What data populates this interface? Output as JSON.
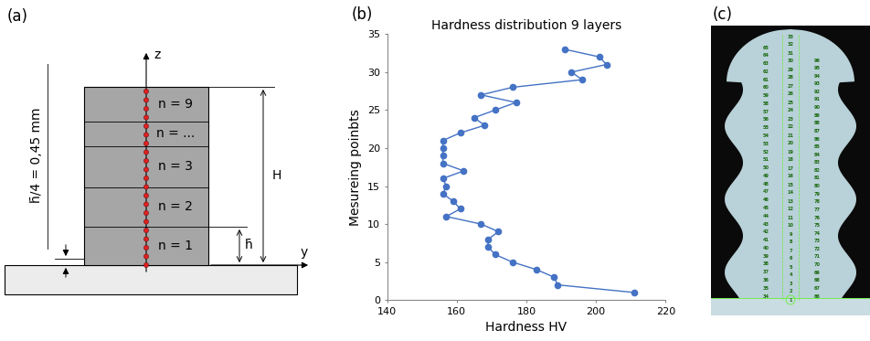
{
  "panel_labels": [
    "(a)",
    "(b)",
    "(c)"
  ],
  "diagram": {
    "axis_labels": {
      "vertical": "z",
      "horizontal": "y"
    },
    "layers": [
      "n = 1",
      "n = 2",
      "n = 3",
      "n = ...",
      "n = 9"
    ],
    "dimensions": {
      "total_height": "H",
      "layer_height": "h̄",
      "offset": "h̄/4 = 0,45 mm"
    }
  },
  "chart_data": {
    "type": "line",
    "title": "Hardness distribution 9 layers",
    "x_label": "Hardness HV",
    "y_label": "Mesureing poinbts",
    "x": [
      211,
      189,
      188,
      183,
      176,
      171,
      169,
      169,
      172,
      167,
      157,
      161,
      159,
      156,
      157,
      156,
      162,
      156,
      156,
      156,
      156,
      161,
      168,
      165,
      171,
      177,
      167,
      176,
      196,
      193,
      203,
      201,
      191
    ],
    "y": [
      1,
      2,
      3,
      4,
      5,
      6,
      7,
      8,
      9,
      10,
      11,
      12,
      13,
      14,
      15,
      16,
      17,
      18,
      19,
      20,
      21,
      22,
      23,
      24,
      25,
      26,
      27,
      28,
      29,
      30,
      31,
      32,
      33
    ],
    "color": "#4472c4",
    "marker": "circle",
    "line_style": "solid",
    "xlim": [
      140,
      220
    ],
    "xticks": [
      140,
      160,
      180,
      200,
      220
    ],
    "ylim": [
      0,
      35
    ],
    "yticks": [
      0,
      5,
      10,
      15,
      20,
      25,
      30,
      35
    ],
    "grid": false
  },
  "photo": {
    "point_columns": {
      "left": [
        34,
        35,
        36,
        37,
        38,
        39,
        40,
        41,
        42,
        43,
        44,
        45,
        46,
        47,
        48,
        49,
        50,
        51,
        52,
        53,
        54,
        55,
        56,
        57,
        58,
        59,
        60,
        61,
        62,
        63,
        64,
        65
      ],
      "center": [
        1,
        2,
        3,
        4,
        5,
        6,
        7,
        8,
        9,
        10,
        11,
        12,
        13,
        14,
        15,
        16,
        17,
        18,
        19,
        20,
        21,
        22,
        23,
        24,
        25,
        26,
        27,
        28,
        29,
        30,
        31,
        32,
        33
      ],
      "right": [
        66,
        67,
        68,
        69,
        70,
        71,
        72,
        73,
        74,
        75,
        76,
        77,
        78,
        79,
        80,
        81,
        82,
        83,
        84,
        85,
        86,
        87,
        88,
        89,
        90,
        91,
        92,
        93,
        94,
        95,
        96
      ]
    }
  }
}
